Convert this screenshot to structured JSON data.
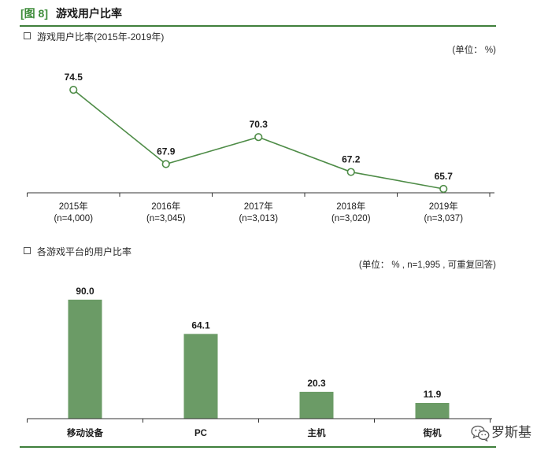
{
  "figure": {
    "number": "[图 8]",
    "title": "游戏用户比率",
    "accent_color": "#3e8c3a",
    "rule_color": "#3f7f3b"
  },
  "chart_data": [
    {
      "type": "line",
      "title": "游戏用户比率(2015年-2019年)",
      "unit": "(单位： %)",
      "categories": [
        "2015年",
        "2016年",
        "2017年",
        "2018年",
        "2019年"
      ],
      "sample_sizes": [
        "(n=4,000)",
        "(n=3,045)",
        "(n=3,013)",
        "(n=3,020)",
        "(n=3,037)"
      ],
      "values": [
        74.5,
        67.9,
        70.3,
        67.2,
        65.7
      ],
      "value_labels": [
        "74.5",
        "67.9",
        "70.3",
        "67.2",
        "65.7"
      ],
      "ylim": [
        65,
        75
      ],
      "grid": false,
      "legend": "none",
      "color": "#4e8c47"
    },
    {
      "type": "bar",
      "title": "各游戏平台的用户比率",
      "unit": "(单位： % , n=1,995 , 可重复回答)",
      "categories": [
        "移动设备",
        "PC",
        "主机",
        "街机"
      ],
      "values": [
        90.0,
        64.1,
        20.3,
        11.9
      ],
      "value_labels": [
        "90.0",
        "64.1",
        "20.3",
        "11.9"
      ],
      "ylim": [
        0,
        100
      ],
      "grid": false,
      "legend": "none",
      "color": "#6b9b66"
    }
  ],
  "watermark": {
    "icon": "wechat-icon",
    "text": "罗斯基"
  }
}
